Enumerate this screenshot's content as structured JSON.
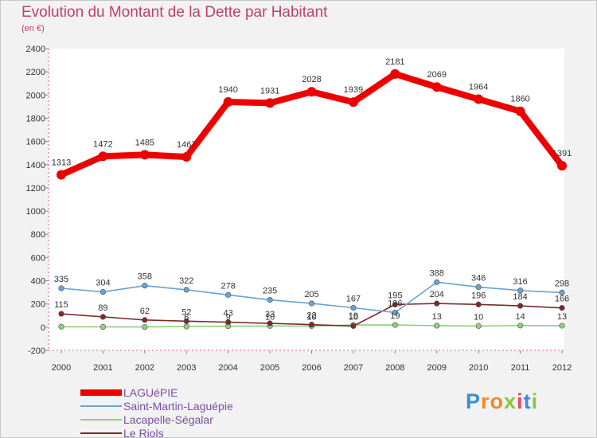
{
  "header": {
    "title": "Evolution du Montant de la Dette par Habitant",
    "subtitle": "(en €)"
  },
  "brand": {
    "letters": [
      "P",
      "r",
      "o",
      "x",
      "i",
      "t",
      "i"
    ],
    "colors": [
      "#3a8fd6",
      "#f08a24",
      "#f08a24",
      "#8cc63f",
      "#e8456a",
      "#3a8fd6",
      "#8cc63f"
    ]
  },
  "chart_data": {
    "type": "line",
    "x": [
      "2000",
      "2001",
      "2002",
      "2003",
      "2004",
      "2005",
      "2006",
      "2007",
      "2008",
      "2009",
      "2010",
      "2011",
      "2012"
    ],
    "ylim": [
      -200,
      2400
    ],
    "yticks": [
      "-200",
      "0",
      "200",
      "400",
      "600",
      "800",
      "1000",
      "1200",
      "1400",
      "1600",
      "1800",
      "2000",
      "2200",
      "2400"
    ],
    "grid": false,
    "legend_position": "bottom-left",
    "series": [
      {
        "name": "LAGUéPIE",
        "color": "#ee0000",
        "values": [
          1313,
          1472,
          1485,
          1467,
          1940,
          1931,
          2028,
          1939,
          2181,
          2069,
          1964,
          1860,
          1391
        ],
        "labels": [
          "1313",
          "1472",
          "1485",
          "1467",
          "1940",
          "1931",
          "2028",
          "1939",
          "2181",
          "2069",
          "1964",
          "1860",
          "1391"
        ]
      },
      {
        "name": "Saint-Martin-Laguépie",
        "color": "#6aa2d2",
        "values": [
          335,
          304,
          358,
          322,
          278,
          235,
          205,
          167,
          126,
          388,
          346,
          316,
          298
        ],
        "labels": [
          "335",
          "304",
          "358",
          "322",
          "278",
          "235",
          "205",
          "167",
          "126",
          "388",
          "346",
          "316",
          "298"
        ]
      },
      {
        "name": "Lacapelle-Ségalar",
        "color": "#8ed07a",
        "values": [
          4,
          3,
          2,
          6,
          9,
          10,
          10,
          19,
          19,
          13,
          10,
          14,
          13
        ],
        "labels": [
          "",
          "",
          "",
          "6",
          "9",
          "10",
          "10",
          "19",
          "19",
          "13",
          "10",
          "14",
          "13"
        ]
      },
      {
        "name": "Le Riols",
        "color": "#7a2a2a",
        "values": [
          115,
          89,
          62,
          52,
          43,
          33,
          22,
          10,
          195,
          204,
          196,
          184,
          166
        ],
        "labels": [
          "115",
          "89",
          "62",
          "52",
          "43",
          "33",
          "22",
          "10",
          "195",
          "204",
          "196",
          "184",
          "166"
        ]
      }
    ]
  }
}
